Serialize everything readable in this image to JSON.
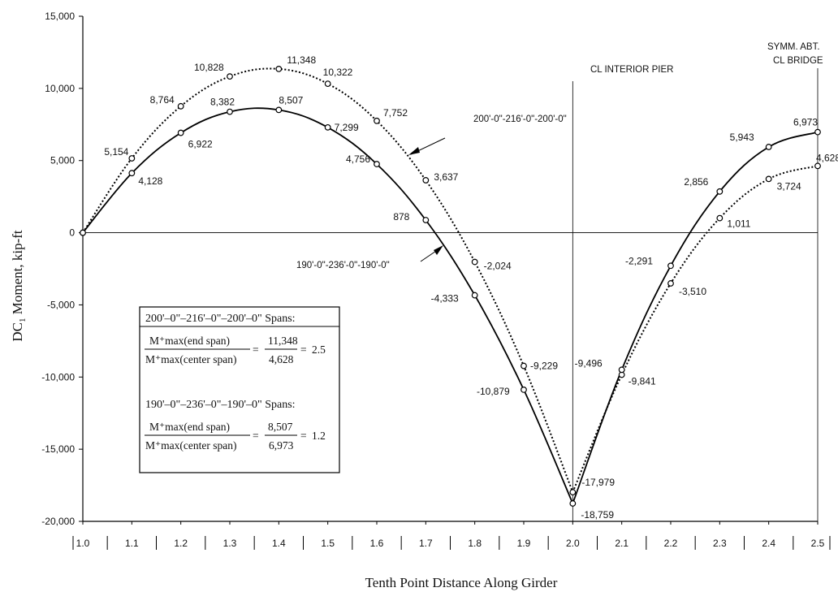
{
  "chart_data": {
    "type": "line",
    "xlabel": "Tenth Point Distance Along Girder",
    "ylabel_main": "DC",
    "ylabel_sub": "1",
    "ylabel_rest": " Moment, kip-ft",
    "ylim": [
      -20000,
      15000
    ],
    "xlim": [
      1.0,
      2.5
    ],
    "yticks": [
      15000,
      10000,
      5000,
      0,
      -5000,
      -10000,
      -15000,
      -20000
    ],
    "ytick_labels": [
      "15,000",
      "10,000",
      "5,000",
      "0",
      "-5,000",
      "-10,000",
      "-15,000",
      "-20,000"
    ],
    "xticks": [
      1.0,
      1.1,
      1.2,
      1.3,
      1.4,
      1.5,
      1.6,
      1.7,
      1.8,
      1.9,
      2.0,
      2.1,
      2.2,
      2.3,
      2.4,
      2.5
    ],
    "xtick_labels": [
      "1.0",
      "1.1",
      "1.2",
      "1.3",
      "1.4",
      "1.5",
      "1.6",
      "1.7",
      "1.8",
      "1.9",
      "2.0",
      "2.1",
      "2.2",
      "2.3",
      "2.4",
      "2.5"
    ],
    "x": [
      1.0,
      1.1,
      1.2,
      1.3,
      1.4,
      1.5,
      1.6,
      1.7,
      1.8,
      1.9,
      2.0,
      2.1,
      2.2,
      2.3,
      2.4,
      2.5
    ],
    "series": [
      {
        "name": "200'-0\"-216'-0\"-200'-0\"",
        "style": "dotted",
        "values": [
          0,
          5154,
          8764,
          10828,
          11348,
          10322,
          7752,
          3637,
          -2024,
          -9229,
          -17979,
          -9841,
          -3510,
          1011,
          3724,
          4628
        ],
        "labels": [
          "",
          "5,154",
          "8,764",
          "10,828",
          "11,348",
          "10,322",
          "7,752",
          "3,637",
          "-2,024",
          "-9,229",
          "-17,979",
          "-9,841",
          "-3,510",
          "1,011",
          "3,724",
          "4,628"
        ]
      },
      {
        "name": "190'-0\"-236'-0\"-190'-0\"",
        "style": "solid",
        "values": [
          0,
          4128,
          6922,
          8382,
          8507,
          7299,
          4756,
          878,
          -4333,
          -10879,
          -18759,
          -9496,
          -2291,
          2856,
          5943,
          6973
        ],
        "labels": [
          "",
          "4,128",
          "6,922",
          "8,382",
          "8,507",
          "7,299",
          "4,756",
          "878",
          "-4,333",
          "-10,879",
          "-18,759",
          "-9,496",
          "-2,291",
          "2,856",
          "5,943",
          "6,973"
        ]
      }
    ],
    "annotations": {
      "pier": "CL INTERIOR PIER",
      "symm_line1": "SYMM. ABT.",
      "symm_line2": "CL BRIDGE"
    },
    "box": {
      "title1": "200'–0\"–216'–0\"–200'–0\"  Spans:",
      "num1": "M⁺max(end span)",
      "den1": "M⁺max(center span)",
      "result1": "= 11,348 / 4,628 = 2.5",
      "eq_num1": "11,348",
      "eq_den1": "4,628",
      "eq_val1": "2.5",
      "title2": "190'–0\"–236'–0\"–190'–0\"  Spans:",
      "num2": "M⁺max(end span)",
      "den2": "M⁺max(center span)",
      "eq_num2": "8,507",
      "eq_den2": "6,973",
      "eq_val2": "1.2"
    },
    "grid": false,
    "legend": "none"
  }
}
